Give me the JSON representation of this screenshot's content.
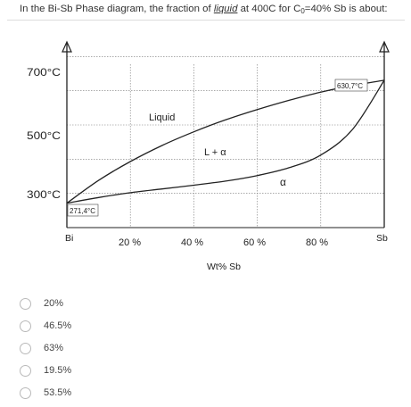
{
  "question": {
    "prefix": "In the Bi-Sb Phase diagram, the fraction of ",
    "emphasis": "liquid",
    "middle": " at 400C for C",
    "subscript": "0",
    "suffix": "=40% Sb is about:"
  },
  "diagram": {
    "y_labels": [
      "700°C",
      "500°C",
      "300°C"
    ],
    "x_labels": [
      "Bi",
      "20 %",
      "40 %",
      "60 %",
      "80 %",
      "Sb"
    ],
    "x_title": "Wt% Sb",
    "annotations": {
      "bi_melting": "271,4°C",
      "sb_melting": "630,7°C",
      "liquid": "Liquid",
      "two_phase": "L + α",
      "alpha": "α"
    }
  },
  "chart_data": {
    "type": "line",
    "xlabel": "Wt% Sb",
    "ylabel": "",
    "xlim": [
      0,
      100
    ],
    "ylim": [
      200,
      740
    ],
    "x_ticks": [
      "Bi",
      "20 %",
      "40 %",
      "60 %",
      "80 %",
      "Sb"
    ],
    "y_ticks": [
      "700°C",
      "500°C",
      "300°C"
    ],
    "series": [
      {
        "points": [
          [
            0,
            271.4
          ],
          [
            10,
            338
          ],
          [
            20,
            393
          ],
          [
            30,
            440
          ],
          [
            40,
            480
          ],
          [
            50,
            515
          ],
          [
            60,
            545
          ],
          [
            70,
            572
          ],
          [
            80,
            596
          ],
          [
            90,
            615
          ],
          [
            100,
            630.7
          ]
        ]
      },
      {
        "points": [
          [
            0,
            271.4
          ],
          [
            10,
            288
          ],
          [
            20,
            302
          ],
          [
            30,
            313
          ],
          [
            40,
            324
          ],
          [
            50,
            336
          ],
          [
            60,
            352
          ],
          [
            70,
            375
          ],
          [
            80,
            412
          ],
          [
            90,
            487
          ],
          [
            100,
            630.7
          ]
        ]
      }
    ]
  },
  "options": [
    {
      "label": "20%"
    },
    {
      "label": "46.5%"
    },
    {
      "label": "63%"
    },
    {
      "label": "19.5%"
    },
    {
      "label": "53.5%"
    }
  ]
}
